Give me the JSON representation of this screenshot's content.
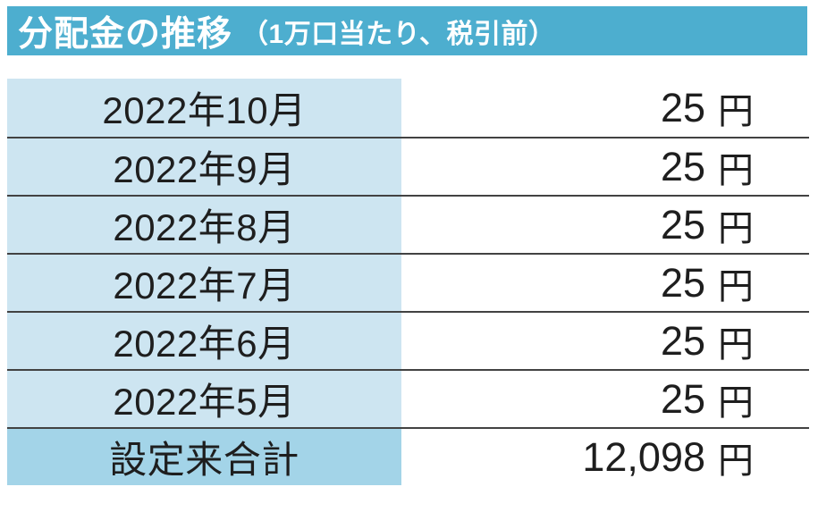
{
  "header": {
    "title": "分配金の推移",
    "subtitle": "（1万口当たり、税引前）"
  },
  "table": {
    "unit": "円",
    "rows": [
      {
        "period": "2022年10月",
        "amount": "25"
      },
      {
        "period": "2022年9月",
        "amount": "25"
      },
      {
        "period": "2022年8月",
        "amount": "25"
      },
      {
        "period": "2022年7月",
        "amount": "25"
      },
      {
        "period": "2022年6月",
        "amount": "25"
      },
      {
        "period": "2022年5月",
        "amount": "25"
      },
      {
        "period": "設定来合計",
        "amount": "12,098",
        "is_total": true
      }
    ]
  },
  "colors": {
    "header_bg": "#4daecf",
    "header_text": "#ffffff",
    "row_bg": "#cde5f1",
    "total_row_bg": "#a3d4e8",
    "line": "#424242",
    "text": "#1e1e1e"
  }
}
